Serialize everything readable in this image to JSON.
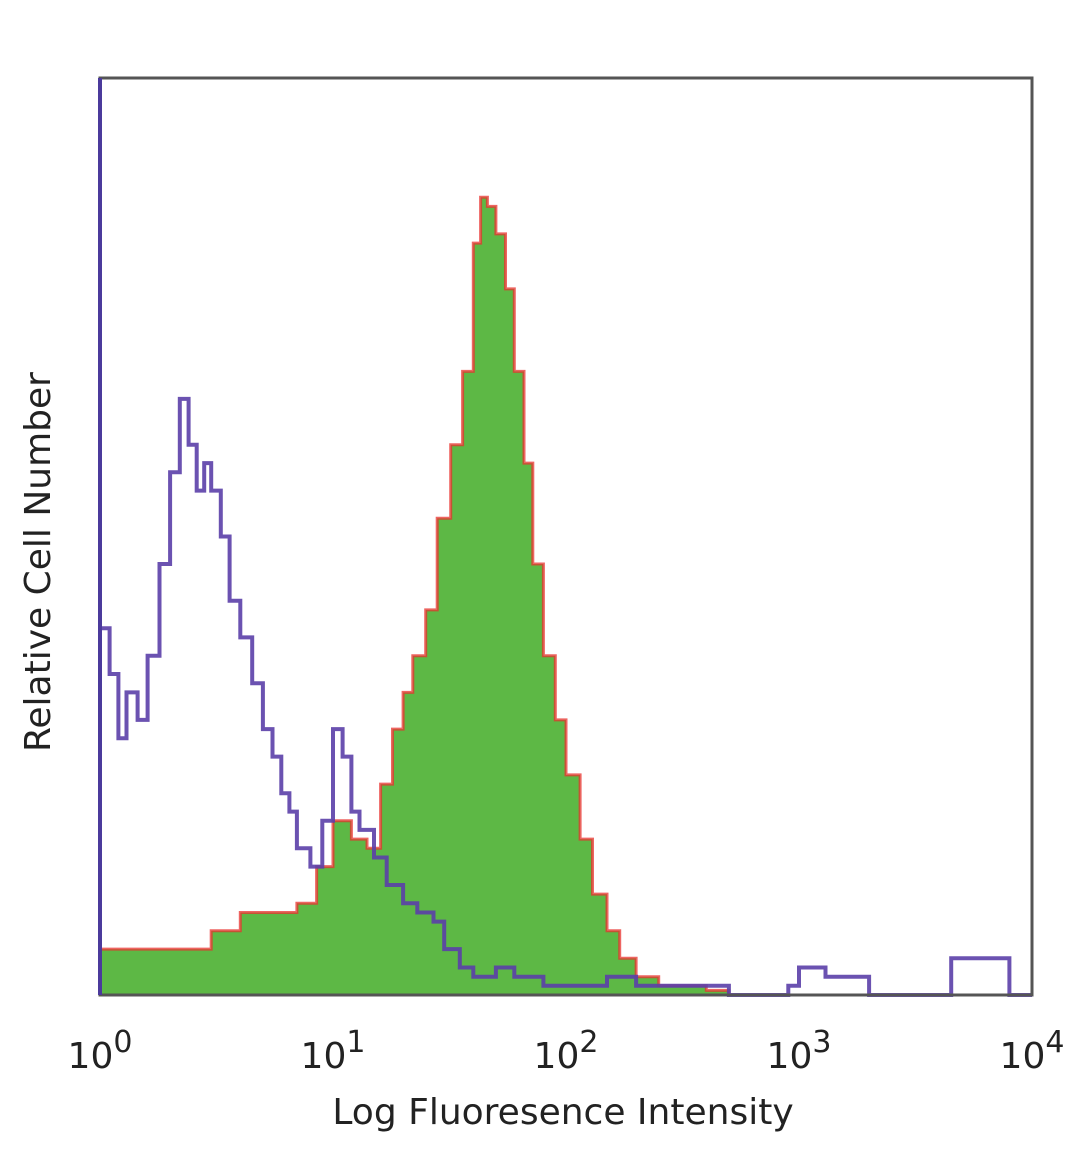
{
  "chart_data": {
    "type": "area",
    "title": "",
    "xlabel": "Log Fluoresence Intensity",
    "ylabel": "Relative Cell Number",
    "xscale": "log",
    "xlim": [
      1,
      10000
    ],
    "ylim": [
      0,
      100
    ],
    "grid": false,
    "legend": "none",
    "x_ticks": [
      {
        "value": 1,
        "base": "10",
        "exp": "0"
      },
      {
        "value": 10,
        "base": "10",
        "exp": "1"
      },
      {
        "value": 100,
        "base": "10",
        "exp": "2"
      },
      {
        "value": 1000,
        "base": "10",
        "exp": "3"
      },
      {
        "value": 10000,
        "base": "10",
        "exp": "4"
      }
    ],
    "series": [
      {
        "style": "filled",
        "color": "#5db845",
        "outline_color": "#e8312d",
        "x": [
          1,
          1.5,
          2.2,
          3,
          4,
          5.5,
          7,
          8.5,
          10,
          12,
          14,
          16,
          18,
          20,
          22,
          25,
          28,
          32,
          36,
          40,
          43,
          46,
          50,
          55,
          60,
          66,
          72,
          80,
          90,
          100,
          115,
          130,
          150,
          170,
          200,
          250,
          300,
          400,
          500,
          1000,
          10000
        ],
        "values": [
          5,
          5,
          5,
          7,
          9,
          9,
          10,
          14,
          19,
          17,
          16,
          23,
          29,
          33,
          37,
          42,
          52,
          60,
          68,
          82,
          87,
          86,
          83,
          77,
          68,
          58,
          47,
          37,
          30,
          24,
          17,
          11,
          7,
          4,
          2,
          1,
          1,
          0.5,
          0,
          0,
          0
        ]
      },
      {
        "style": "outline",
        "color": "#5b3fa8",
        "x": [
          1,
          1.1,
          1.2,
          1.3,
          1.45,
          1.6,
          1.8,
          2.0,
          2.2,
          2.4,
          2.6,
          2.8,
          3.0,
          3.3,
          3.6,
          4.0,
          4.5,
          5.0,
          5.5,
          6.0,
          6.5,
          7.0,
          8.0,
          9.0,
          10,
          11,
          12,
          13,
          15,
          17,
          20,
          23,
          27,
          30,
          35,
          40,
          50,
          60,
          80,
          100,
          150,
          200,
          500,
          900,
          1000,
          1300,
          2000,
          4000,
          4500,
          8000,
          9500,
          10000
        ],
        "values": [
          40,
          35,
          28,
          33,
          30,
          37,
          47,
          57,
          65,
          60,
          55,
          58,
          55,
          50,
          43,
          39,
          34,
          29,
          26,
          22,
          20,
          16,
          14,
          19,
          29,
          26,
          20,
          18,
          15,
          12,
          10,
          9,
          8,
          5,
          3,
          2,
          3,
          2,
          1,
          1,
          2,
          1,
          0,
          1,
          3,
          2,
          0,
          0,
          4,
          0,
          0,
          0
        ]
      }
    ]
  }
}
